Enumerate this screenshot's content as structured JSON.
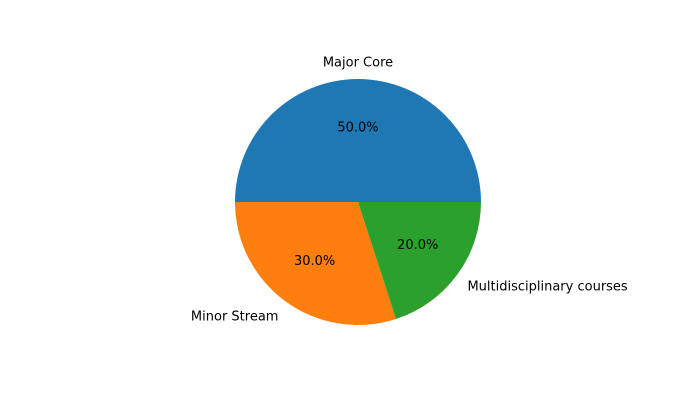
{
  "chart_data": {
    "type": "pie",
    "title": "",
    "categories": [
      "Major Core",
      "Minor Stream",
      "Multidisciplinary courses"
    ],
    "values": [
      50,
      30,
      20
    ],
    "percent_labels": [
      "50.0%",
      "30.0%",
      "20.0%"
    ],
    "colors": [
      "#1f77b4",
      "#ff7f0e",
      "#2ca02c"
    ],
    "start_angle_deg": 0,
    "direction": "counterclockwise",
    "legend": "none"
  }
}
